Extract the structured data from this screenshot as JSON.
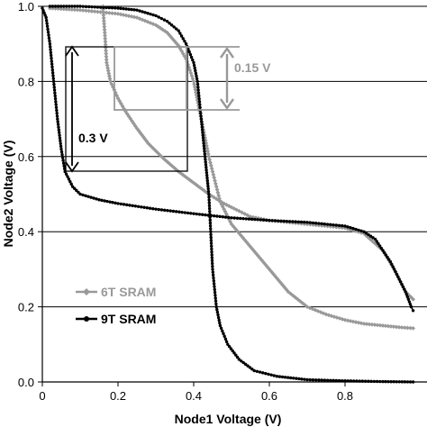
{
  "chart_data": {
    "type": "line",
    "xlabel": "Node1 Voltage (V)",
    "ylabel": "Node2 Voltage (V)",
    "xlim": [
      0,
      1.0
    ],
    "ylim": [
      0,
      1.0
    ],
    "x_ticks": [
      "0",
      "0.2",
      "0.4",
      "0.6",
      "0.8"
    ],
    "y_ticks": [
      "0.0",
      "0.2",
      "0.4",
      "0.6",
      "0.8",
      "1.0"
    ],
    "grid": "horizontal",
    "legend_position": "bottom-left",
    "series": [
      {
        "name": "6T SRAM",
        "color": "#999999",
        "marker": "diamond",
        "curves": [
          [
            [
              0.16,
              1.0
            ],
            [
              0.165,
              0.93
            ],
            [
              0.17,
              0.85
            ],
            [
              0.18,
              0.8
            ],
            [
              0.2,
              0.755
            ],
            [
              0.22,
              0.72
            ],
            [
              0.25,
              0.675
            ],
            [
              0.28,
              0.635
            ],
            [
              0.32,
              0.595
            ],
            [
              0.36,
              0.56
            ],
            [
              0.4,
              0.53
            ],
            [
              0.44,
              0.5
            ],
            [
              0.48,
              0.475
            ],
            [
              0.5,
              0.465
            ],
            [
              0.52,
              0.455
            ],
            [
              0.55,
              0.44
            ],
            [
              0.6,
              0.43
            ],
            [
              0.7,
              0.42
            ],
            [
              0.8,
              0.41
            ],
            [
              0.85,
              0.395
            ],
            [
              0.9,
              0.35
            ],
            [
              0.93,
              0.3
            ],
            [
              0.96,
              0.24
            ],
            [
              0.98,
              0.22
            ]
          ],
          [
            [
              0.02,
              0.995
            ],
            [
              0.1,
              0.99
            ],
            [
              0.2,
              0.98
            ],
            [
              0.25,
              0.97
            ],
            [
              0.3,
              0.95
            ],
            [
              0.33,
              0.93
            ],
            [
              0.36,
              0.895
            ],
            [
              0.38,
              0.86
            ],
            [
              0.4,
              0.8
            ],
            [
              0.41,
              0.75
            ],
            [
              0.42,
              0.7
            ],
            [
              0.43,
              0.65
            ],
            [
              0.44,
              0.6
            ],
            [
              0.45,
              0.56
            ],
            [
              0.46,
              0.52
            ],
            [
              0.47,
              0.48
            ],
            [
              0.5,
              0.42
            ],
            [
              0.55,
              0.36
            ],
            [
              0.6,
              0.3
            ],
            [
              0.65,
              0.24
            ],
            [
              0.7,
              0.2
            ],
            [
              0.75,
              0.18
            ],
            [
              0.8,
              0.165
            ],
            [
              0.85,
              0.155
            ],
            [
              0.9,
              0.15
            ],
            [
              0.95,
              0.145
            ],
            [
              0.98,
              0.143
            ]
          ]
        ]
      },
      {
        "name": "9T SRAM",
        "color": "#000000",
        "marker": "circle",
        "curves": [
          [
            [
              0.0,
              0.995
            ],
            [
              0.01,
              0.97
            ],
            [
              0.02,
              0.9
            ],
            [
              0.03,
              0.8
            ],
            [
              0.04,
              0.7
            ],
            [
              0.05,
              0.62
            ],
            [
              0.06,
              0.56
            ],
            [
              0.08,
              0.52
            ],
            [
              0.1,
              0.5
            ],
            [
              0.15,
              0.485
            ],
            [
              0.2,
              0.475
            ],
            [
              0.3,
              0.46
            ],
            [
              0.4,
              0.448
            ],
            [
              0.5,
              0.437
            ],
            [
              0.6,
              0.43
            ],
            [
              0.7,
              0.425
            ],
            [
              0.8,
              0.415
            ],
            [
              0.85,
              0.4
            ],
            [
              0.88,
              0.38
            ],
            [
              0.9,
              0.35
            ],
            [
              0.92,
              0.32
            ],
            [
              0.94,
              0.28
            ],
            [
              0.96,
              0.24
            ],
            [
              0.975,
              0.2
            ],
            [
              0.98,
              0.19
            ]
          ],
          [
            [
              0.02,
              1.0
            ],
            [
              0.1,
              1.0
            ],
            [
              0.2,
              0.995
            ],
            [
              0.25,
              0.99
            ],
            [
              0.3,
              0.975
            ],
            [
              0.33,
              0.96
            ],
            [
              0.36,
              0.935
            ],
            [
              0.38,
              0.9
            ],
            [
              0.4,
              0.85
            ],
            [
              0.41,
              0.8
            ],
            [
              0.42,
              0.7
            ],
            [
              0.425,
              0.65
            ],
            [
              0.43,
              0.6
            ],
            [
              0.435,
              0.55
            ],
            [
              0.44,
              0.5
            ],
            [
              0.445,
              0.4
            ],
            [
              0.45,
              0.3
            ],
            [
              0.46,
              0.2
            ],
            [
              0.47,
              0.15
            ],
            [
              0.49,
              0.1
            ],
            [
              0.52,
              0.06
            ],
            [
              0.56,
              0.03
            ],
            [
              0.62,
              0.015
            ],
            [
              0.7,
              0.006
            ],
            [
              0.8,
              0.003
            ],
            [
              0.9,
              0.001
            ],
            [
              0.98,
              0.0
            ]
          ]
        ]
      }
    ],
    "annotations": [
      {
        "text": "0.3 V",
        "color": "#000000"
      },
      {
        "text": "0.15 V",
        "color": "#999999"
      }
    ]
  }
}
